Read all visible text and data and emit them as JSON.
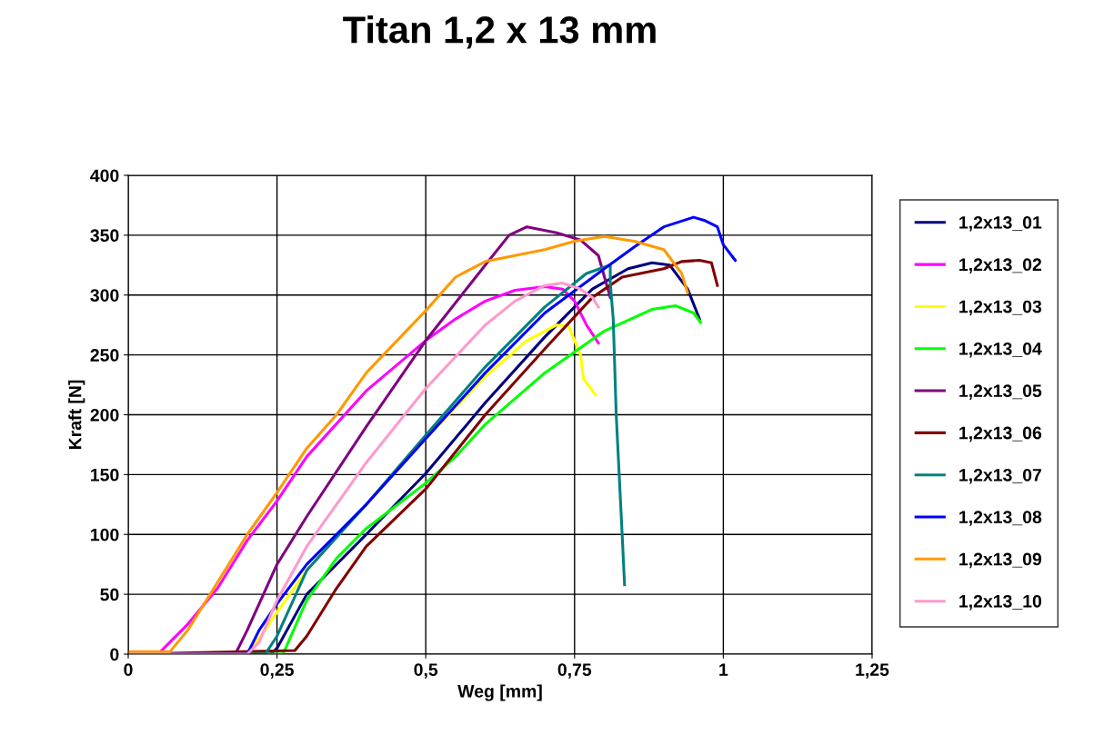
{
  "chart_data": {
    "type": "line",
    "title": "Titan 1,2 x 13 mm",
    "xlabel": "Weg [mm]",
    "ylabel": "Kraft [N]",
    "xlim": [
      0,
      1.25
    ],
    "xticks": [
      0,
      {
        "value": 0.25,
        "label": "0,25"
      },
      {
        "value": 0.5,
        "label": "0,5"
      },
      {
        "value": 0.75,
        "label": "0,75"
      },
      1,
      {
        "value": 1.25,
        "label": "1,25"
      }
    ],
    "ylim": [
      0,
      400
    ],
    "yticks": [
      0,
      50,
      100,
      150,
      200,
      250,
      300,
      350,
      400
    ],
    "grid": true,
    "legend": "right",
    "marker": "none",
    "line_style": "solid",
    "series": [
      {
        "name": "1,2x13_01",
        "color": "#000080",
        "x": [
          0,
          0.24,
          0.25,
          0.3,
          0.4,
          0.5,
          0.6,
          0.7,
          0.78,
          0.84,
          0.88,
          0.91,
          0.94,
          0.96
        ],
        "values": [
          0,
          0,
          5,
          50,
          100,
          151,
          210,
          265,
          305,
          322,
          327,
          325,
          305,
          280
        ]
      },
      {
        "name": "1,2x13_02",
        "color": "#ff00ff",
        "x": [
          0,
          0.05,
          0.07,
          0.1,
          0.15,
          0.2,
          0.25,
          0.3,
          0.4,
          0.5,
          0.55,
          0.6,
          0.65,
          0.7,
          0.73,
          0.75,
          0.77,
          0.79
        ],
        "values": [
          0,
          0,
          10,
          25,
          55,
          95,
          128,
          165,
          220,
          262,
          280,
          295,
          304,
          307,
          305,
          295,
          275,
          260
        ]
      },
      {
        "name": "1,2x13_03",
        "color": "#ffff00",
        "x": [
          0,
          0.2,
          0.23,
          0.25,
          0.3,
          0.4,
          0.5,
          0.6,
          0.67,
          0.72,
          0.74,
          0.76,
          0.765,
          0.785
        ],
        "values": [
          0,
          0,
          20,
          35,
          70,
          125,
          180,
          232,
          262,
          275,
          274,
          250,
          230,
          217
        ]
      },
      {
        "name": "1,2x13_04",
        "color": "#00ff00",
        "x": [
          0,
          0.26,
          0.3,
          0.35,
          0.4,
          0.5,
          0.55,
          0.6,
          0.7,
          0.8,
          0.88,
          0.92,
          0.95,
          0.962
        ],
        "values": [
          0,
          0,
          45,
          80,
          105,
          143,
          165,
          192,
          235,
          270,
          288,
          291,
          285,
          277
        ]
      },
      {
        "name": "1,2x13_05",
        "color": "#800080",
        "x": [
          0,
          0.18,
          0.2,
          0.25,
          0.3,
          0.4,
          0.5,
          0.6,
          0.64,
          0.67,
          0.72,
          0.76,
          0.79,
          0.81
        ],
        "values": [
          0,
          0,
          20,
          75,
          115,
          190,
          262,
          325,
          350,
          357,
          352,
          346,
          333,
          298
        ]
      },
      {
        "name": "1,2x13_06",
        "color": "#800000",
        "x": [
          0,
          0.28,
          0.3,
          0.35,
          0.4,
          0.5,
          0.6,
          0.7,
          0.78,
          0.83,
          0.9,
          0.93,
          0.96,
          0.98,
          0.99
        ],
        "values": [
          0,
          3,
          15,
          55,
          90,
          138,
          200,
          255,
          298,
          315,
          322,
          328,
          329,
          327,
          308
        ]
      },
      {
        "name": "1,2x13_07",
        "color": "#008080",
        "x": [
          0,
          0.23,
          0.25,
          0.3,
          0.4,
          0.5,
          0.6,
          0.7,
          0.77,
          0.81,
          0.81,
          0.815,
          0.82,
          0.83,
          0.834
        ],
        "values": [
          0,
          0,
          15,
          70,
          125,
          183,
          240,
          290,
          318,
          325,
          310,
          280,
          200,
          100,
          58
        ]
      },
      {
        "name": "1,2x13_08",
        "color": "#0000ff",
        "x": [
          0,
          0.2,
          0.22,
          0.25,
          0.3,
          0.4,
          0.5,
          0.6,
          0.7,
          0.8,
          0.85,
          0.9,
          0.95,
          0.97,
          0.99,
          1.0,
          1.02
        ],
        "values": [
          0,
          0,
          20,
          42,
          75,
          125,
          180,
          235,
          285,
          322,
          340,
          357,
          365,
          362,
          357,
          342,
          329
        ]
      },
      {
        "name": "1,2x13_09",
        "color": "#ff9900",
        "x": [
          0,
          0.07,
          0.1,
          0.15,
          0.2,
          0.25,
          0.3,
          0.35,
          0.4,
          0.5,
          0.55,
          0.6,
          0.65,
          0.7,
          0.75,
          0.8,
          0.85,
          0.9,
          0.93,
          0.94
        ],
        "values": [
          2,
          2,
          20,
          60,
          100,
          135,
          172,
          200,
          235,
          287,
          315,
          328,
          333,
          338,
          345,
          349,
          345,
          338,
          318,
          302
        ]
      },
      {
        "name": "1,2x13_10",
        "color": "#ff99cc",
        "x": [
          0,
          0.2,
          0.22,
          0.25,
          0.3,
          0.4,
          0.5,
          0.6,
          0.65,
          0.7,
          0.73,
          0.76,
          0.78,
          0.79
        ],
        "values": [
          0,
          0,
          10,
          45,
          90,
          160,
          222,
          275,
          295,
          308,
          310,
          305,
          298,
          290
        ]
      }
    ]
  }
}
